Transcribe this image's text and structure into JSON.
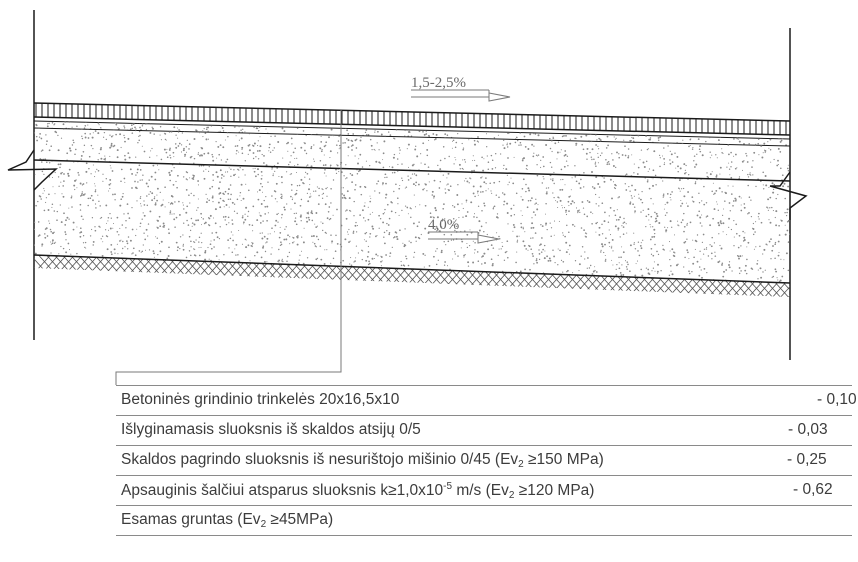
{
  "slopes": {
    "top": "1,5-2,5%",
    "base": "4,0%"
  },
  "layers": [
    {
      "pre": "Betoninės grindinio trinkelės 20x16,5x10",
      "value": "- 0,10"
    },
    {
      "pre": "Išlyginamasis sluoksnis iš skaldos atsijų  0/5",
      "value": "- 0,03"
    },
    {
      "pre": "Skaldos pagrindo sluoksnis iš nesurištojo mišinio 0/45 (Ev",
      "sub": "2",
      "post": " ≥150 MPa)",
      "value": "- 0,25"
    },
    {
      "pre": "Apsauginis šalčiui atsparus sluoksnis k≥1,0x10",
      "sup": "-5",
      "mid": " m/s (Ev",
      "sub": "2",
      "post": " ≥120 MPa)",
      "value": "- 0,62"
    },
    {
      "pre": "Esamas gruntas (Ev",
      "sub": "2",
      "post": " ≥45MPa)",
      "value": ""
    }
  ],
  "colors": {
    "line": "#1a1a1a",
    "gray": "#7a7a7a",
    "text": "#3c3c3c"
  }
}
